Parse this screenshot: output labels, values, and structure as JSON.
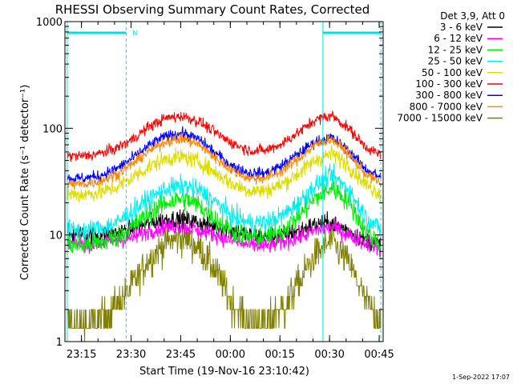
{
  "chart_data": {
    "type": "line",
    "title": "RHESSI Observing Summary Count Rates, Corrected",
    "xlabel": "Start Time (19-Nov-16 23:10:42)",
    "ylabel": "Corrected Count Rate (s⁻¹ detector⁻¹)",
    "y_scale": "log",
    "ylim": [
      1,
      1000
    ],
    "x_units": "minutes after 23:10:42 UT, 19-Nov-16",
    "xlim": [
      -0.7,
      95.5
    ],
    "x_ticks": [
      {
        "t": 4.3,
        "label": "23:15"
      },
      {
        "t": 19.3,
        "label": "23:30"
      },
      {
        "t": 34.3,
        "label": "23:45"
      },
      {
        "t": 49.3,
        "label": "00:00"
      },
      {
        "t": 64.3,
        "label": "00:15"
      },
      {
        "t": 79.3,
        "label": "00:30"
      },
      {
        "t": 94.3,
        "label": "00:45"
      }
    ],
    "y_ticks": [
      {
        "v": 1,
        "label": "1"
      },
      {
        "v": 10,
        "label": "10"
      },
      {
        "v": 100,
        "label": "100"
      },
      {
        "v": 1000,
        "label": "1000"
      }
    ],
    "legend_header": "Det 3,9, Att 0",
    "legend_position": "right",
    "series": [
      {
        "name": "3 - 6 keV",
        "color": "#000000",
        "x": [
          0,
          5,
          10,
          15,
          20,
          25,
          30,
          35,
          40,
          45,
          50,
          55,
          60,
          65,
          70,
          75,
          80,
          85,
          90,
          95
        ],
        "y": [
          10,
          10,
          10,
          10.5,
          11.5,
          13,
          14,
          14,
          13,
          12,
          11,
          10,
          9.5,
          10,
          11,
          12.5,
          13,
          11,
          9,
          8
        ]
      },
      {
        "name": "6 - 12 keV",
        "color": "#ff00ff",
        "x": [
          0,
          5,
          10,
          15,
          20,
          25,
          30,
          35,
          40,
          45,
          50,
          55,
          60,
          65,
          70,
          75,
          80,
          85,
          90,
          95
        ],
        "y": [
          8.3,
          8.3,
          8.4,
          8.8,
          9.5,
          11,
          12,
          12,
          11,
          10,
          8.8,
          8,
          7.8,
          8.5,
          9.5,
          11,
          12,
          10,
          8.5,
          7.5
        ]
      },
      {
        "name": "12 - 25 keV",
        "color": "#00ee00",
        "x": [
          0,
          5,
          10,
          15,
          20,
          25,
          30,
          35,
          40,
          45,
          50,
          55,
          60,
          65,
          70,
          75,
          80,
          85,
          90,
          95
        ],
        "y": [
          8,
          8,
          8.5,
          9.5,
          12,
          16,
          20,
          22,
          19,
          14,
          11,
          9.5,
          9.5,
          11,
          15,
          22,
          28,
          21,
          11,
          8
        ]
      },
      {
        "name": "25 - 50 keV",
        "color": "#00eeee",
        "x": [
          0,
          5,
          10,
          15,
          20,
          25,
          30,
          35,
          40,
          45,
          50,
          55,
          60,
          65,
          70,
          75,
          80,
          85,
          90,
          95
        ],
        "y": [
          11,
          11,
          11.5,
          13,
          17,
          22,
          27,
          29,
          26,
          20,
          15,
          13,
          13,
          15,
          20,
          29,
          36,
          27,
          15,
          11
        ]
      },
      {
        "name": "50 - 100 keV",
        "color": "#dddd00",
        "x": [
          0,
          5,
          10,
          15,
          20,
          25,
          30,
          35,
          40,
          45,
          50,
          55,
          60,
          65,
          70,
          75,
          80,
          85,
          90,
          95
        ],
        "y": [
          24,
          24,
          25,
          28,
          35,
          44,
          52,
          54,
          48,
          38,
          30,
          26,
          26,
          30,
          38,
          50,
          58,
          45,
          30,
          24
        ]
      },
      {
        "name": "100 - 300 keV",
        "color": "#ff0000",
        "x": [
          0,
          5,
          10,
          15,
          20,
          25,
          30,
          35,
          40,
          45,
          50,
          55,
          60,
          65,
          70,
          75,
          80,
          85,
          90,
          95
        ],
        "y": [
          55,
          55,
          58,
          65,
          80,
          105,
          125,
          130,
          115,
          90,
          72,
          62,
          62,
          72,
          92,
          120,
          132,
          100,
          68,
          55
        ]
      },
      {
        "name": "300 - 800 keV",
        "color": "#0000ff",
        "x": [
          0,
          5,
          10,
          15,
          20,
          25,
          30,
          35,
          40,
          45,
          50,
          55,
          60,
          65,
          70,
          75,
          80,
          85,
          90,
          95
        ],
        "y": [
          34,
          34,
          36,
          42,
          53,
          70,
          85,
          90,
          78,
          58,
          44,
          38,
          38,
          45,
          58,
          75,
          82,
          62,
          42,
          34
        ]
      },
      {
        "name": "800 - 7000 keV",
        "color": "#ff8800",
        "x": [
          0,
          5,
          10,
          15,
          20,
          25,
          30,
          35,
          40,
          45,
          50,
          55,
          60,
          65,
          70,
          75,
          80,
          85,
          90,
          95
        ],
        "y": [
          30,
          30,
          32,
          37,
          47,
          62,
          76,
          80,
          70,
          52,
          40,
          34,
          34,
          40,
          52,
          70,
          80,
          58,
          38,
          30
        ]
      },
      {
        "name": "7000 - 15000 keV",
        "color": "#808000",
        "x": [
          0,
          5,
          10,
          15,
          20,
          25,
          30,
          35,
          40,
          45,
          50,
          55,
          60,
          65,
          70,
          75,
          80,
          85,
          90,
          95
        ],
        "y": [
          1.5,
          1.5,
          1.6,
          2.2,
          3.5,
          6,
          8.5,
          9.5,
          7.5,
          4.5,
          2.2,
          1.6,
          1.5,
          2,
          3.5,
          6.5,
          9,
          5.5,
          2.5,
          1.5
        ]
      }
    ],
    "vertical_markers": [
      {
        "t": 0.0,
        "style": "solid"
      },
      {
        "t": 17.8,
        "style": "dashed"
      },
      {
        "t": 77.3,
        "style": "solid"
      },
      {
        "t": 94.8,
        "style": "dashed"
      }
    ],
    "top_bars": [
      {
        "t_start": 0.0,
        "t_end": 17.8,
        "label": "N"
      },
      {
        "t_start": 77.3,
        "t_end": 94.8,
        "label": ""
      }
    ],
    "grid": false,
    "colors": {
      "marker": "#00e0e0",
      "axis": "#000000",
      "background": "#ffffff"
    }
  },
  "footer": {
    "date": "1-Sep-2022 17:07"
  }
}
